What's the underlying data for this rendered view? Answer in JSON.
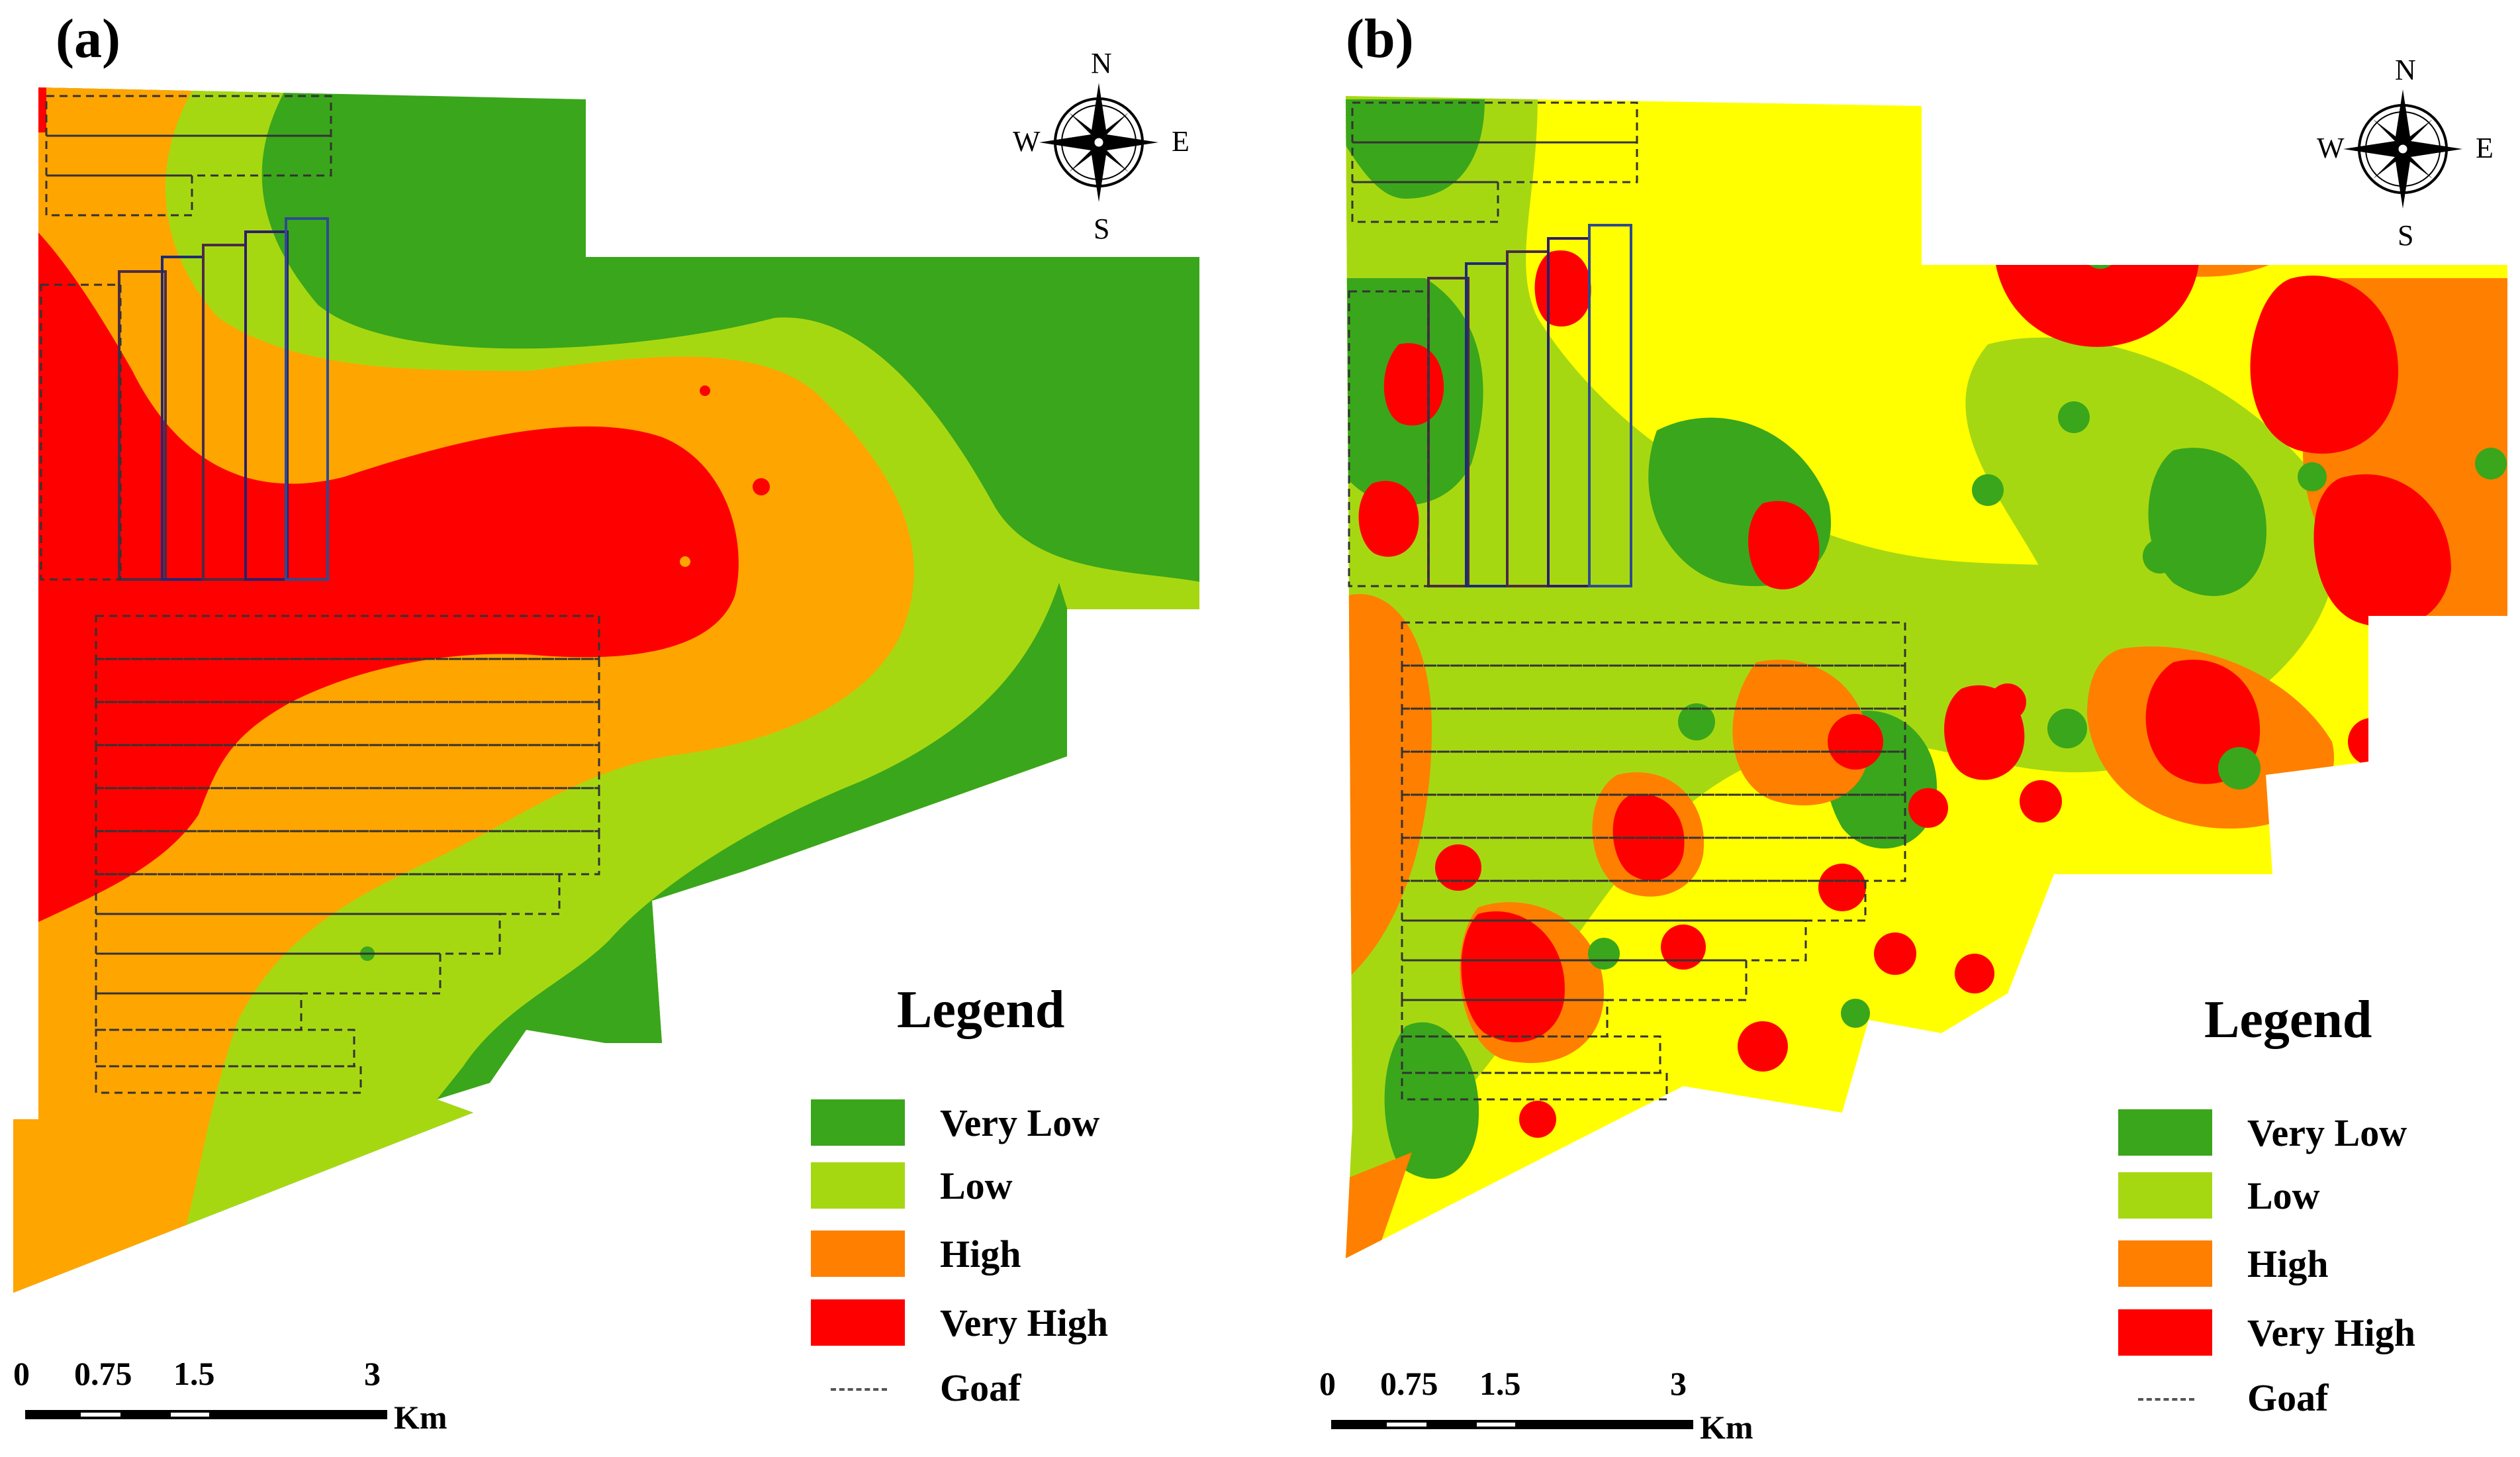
{
  "panels": [
    {
      "tag": "(a)"
    },
    {
      "tag": "(b)"
    }
  ],
  "compass": {
    "north": "N",
    "south": "S",
    "east": "E",
    "west": "W"
  },
  "legend": {
    "title": "Legend",
    "items": [
      {
        "label": "Very Low",
        "color": "#3aa61b"
      },
      {
        "label": "Low",
        "color": "#a6d812"
      },
      {
        "label": "High",
        "color": "#ffa500"
      },
      {
        "label": "Very High",
        "color": "#ff0000"
      }
    ],
    "goaf_label": "Goaf"
  },
  "scale": {
    "ticks": [
      "0",
      "0.75",
      "1.5",
      "3"
    ],
    "unit": "Km"
  },
  "colors": {
    "very_low": "#3aa61b",
    "low": "#a6d812",
    "high": "#ffa500",
    "very_high": "#ff0000",
    "yellow_band": "#ffff00",
    "orange_b": "#ff7f00"
  }
}
